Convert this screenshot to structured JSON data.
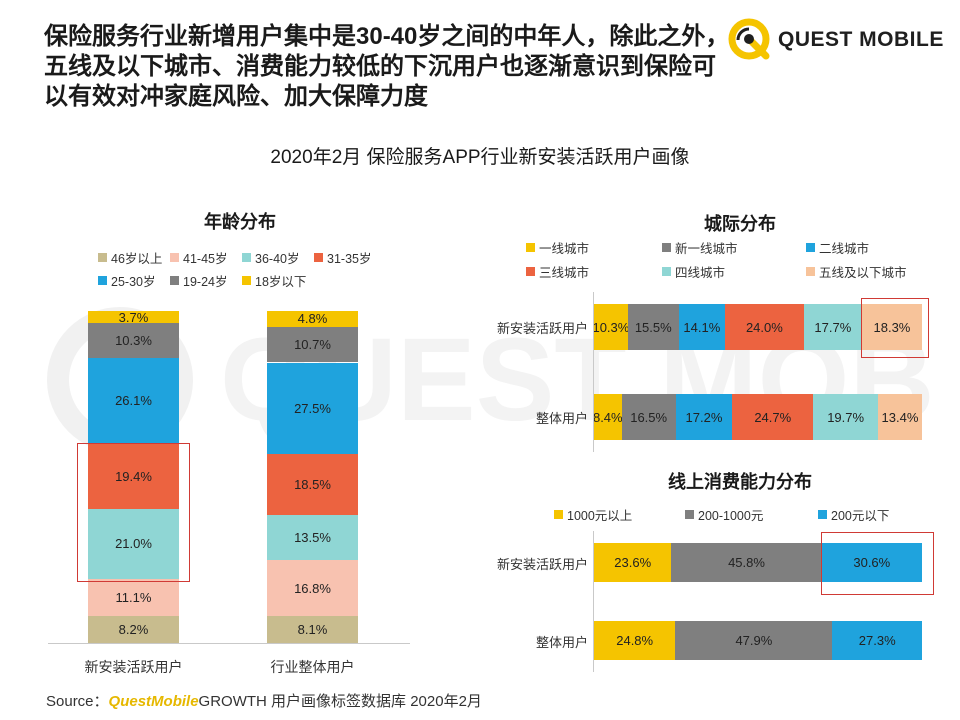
{
  "headline": "保险服务行业新增用户集中是30-40岁之间的中年人，除此之外，五线及以下城市、消费能力较低的下沉用户也逐渐意识到保险可以有效对冲家庭风险、加大保障力度",
  "logo_text": "QUEST MOBILE",
  "watermark_text": "QUEST MOBILE",
  "subtitle": "2020年2月 保险服务APP行业新安装活跃用户画像",
  "source": {
    "prefix": "Source：",
    "brand": "QuestMobile",
    "rest": "GROWTH 用户画像标签数据库 2020年2月"
  },
  "colors": {
    "yellow": "#f5c400",
    "gray": "#7f7f7f",
    "blue": "#1fa3dd",
    "red": "#ec6340",
    "teal": "#8fd6d4",
    "pink": "#f8c2b0",
    "khaki": "#c8bc8e",
    "peach": "#f7c39a",
    "highlight": "#d03a35"
  },
  "chart_data": [
    {
      "type": "stacked-bar",
      "title": "年龄分布",
      "categories": [
        "新安装活跃用户",
        "行业整体用户"
      ],
      "legend": [
        "46岁以上",
        "41-45岁",
        "36-40岁",
        "31-35岁",
        "25-30岁",
        "19-24岁",
        "18岁以下"
      ],
      "series": [
        {
          "name": "46岁以上",
          "values": [
            8.2,
            8.1
          ],
          "labels": [
            "8.2%",
            "8.1%"
          ],
          "color": "#c8bc8e"
        },
        {
          "name": "41-45岁",
          "values": [
            11.1,
            16.8
          ],
          "labels": [
            "11.1%",
            "16.8%"
          ],
          "color": "#f8c2b0"
        },
        {
          "name": "36-40岁",
          "values": [
            21.0,
            13.5
          ],
          "labels": [
            "21.0%",
            "13.5%"
          ],
          "color": "#8fd6d4"
        },
        {
          "name": "31-35岁",
          "values": [
            19.4,
            18.5
          ],
          "labels": [
            "19.4%",
            "18.5%"
          ],
          "color": "#ec6340"
        },
        {
          "name": "25-30岁",
          "values": [
            26.1,
            27.5
          ],
          "labels": [
            "26.1%",
            "27.5%"
          ],
          "color": "#1fa3dd"
        },
        {
          "name": "19-24岁",
          "values": [
            10.3,
            10.7
          ],
          "labels": [
            "10.3%",
            "10.7%"
          ],
          "color": "#7f7f7f"
        },
        {
          "name": "18岁以下",
          "values": [
            3.7,
            4.8
          ],
          "labels": [
            "3.7%",
            "4.8%"
          ],
          "color": "#f5c400"
        }
      ],
      "highlight": {
        "category": "新安装活跃用户",
        "series": [
          "36-40岁",
          "31-35岁"
        ]
      }
    },
    {
      "type": "stacked-bar-horizontal",
      "title": "城际分布",
      "categories": [
        "新安装活跃用户",
        "整体用户"
      ],
      "legend": [
        "一线城市",
        "新一线城市",
        "二线城市",
        "三线城市",
        "四线城市",
        "五线及以下城市"
      ],
      "series": [
        {
          "name": "一线城市",
          "values": [
            10.3,
            8.4
          ],
          "labels": [
            "10.3%",
            "8.4%"
          ],
          "color": "#f5c400"
        },
        {
          "name": "新一线城市",
          "values": [
            15.5,
            16.5
          ],
          "labels": [
            "15.5%",
            "16.5%"
          ],
          "color": "#7f7f7f"
        },
        {
          "name": "二线城市",
          "values": [
            14.1,
            17.2
          ],
          "labels": [
            "14.1%",
            "17.2%"
          ],
          "color": "#1fa3dd"
        },
        {
          "name": "三线城市",
          "values": [
            24.0,
            24.7
          ],
          "labels": [
            "24.0%",
            "24.7%"
          ],
          "color": "#ec6340"
        },
        {
          "name": "四线城市",
          "values": [
            17.7,
            19.7
          ],
          "labels": [
            "17.7%",
            "19.7%"
          ],
          "color": "#8fd6d4"
        },
        {
          "name": "五线及以下城市",
          "values": [
            18.3,
            13.4
          ],
          "labels": [
            "18.3%",
            "13.4%"
          ],
          "color": "#f7c39a"
        }
      ],
      "highlight": {
        "category": "新安装活跃用户",
        "series": [
          "五线及以下城市"
        ]
      }
    },
    {
      "type": "stacked-bar-horizontal",
      "title": "线上消费能力分布",
      "categories": [
        "新安装活跃用户",
        "整体用户"
      ],
      "legend": [
        "1000元以上",
        "200-1000元",
        "200元以下"
      ],
      "series": [
        {
          "name": "1000元以上",
          "values": [
            23.6,
            24.8
          ],
          "labels": [
            "23.6%",
            "24.8%"
          ],
          "color": "#f5c400"
        },
        {
          "name": "200-1000元",
          "values": [
            45.8,
            47.9
          ],
          "labels": [
            "45.8%",
            "47.9%"
          ],
          "color": "#7f7f7f"
        },
        {
          "name": "200元以下",
          "values": [
            30.6,
            27.3
          ],
          "labels": [
            "30.6%",
            "27.3%"
          ],
          "color": "#1fa3dd"
        }
      ],
      "highlight": {
        "category": "新安装活跃用户",
        "series": [
          "200元以下"
        ]
      }
    }
  ]
}
